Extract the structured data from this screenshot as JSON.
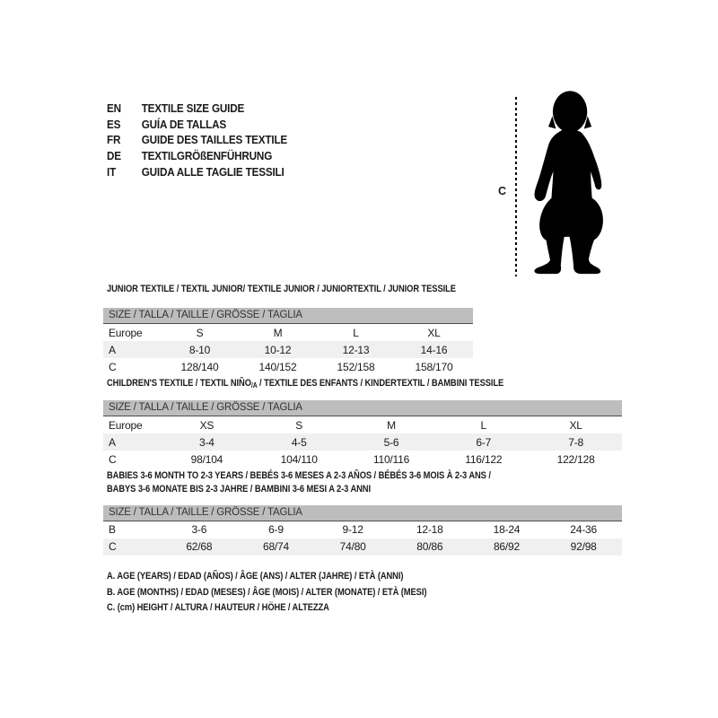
{
  "colors": {
    "background": "#ffffff",
    "size_bar_bg": "#bdbdbd",
    "size_bar_border": "#4d4d4d",
    "alt_row_bg": "#f0f0f0",
    "text": "#1a1a1a",
    "silhouette": "#000000"
  },
  "languages": {
    "items": [
      {
        "code": "EN",
        "label": "TEXTILE SIZE GUIDE"
      },
      {
        "code": "ES",
        "label": "GUÍA DE TALLAS"
      },
      {
        "code": "FR",
        "label": "GUIDE DES TAILLES TEXTILE"
      },
      {
        "code": "DE",
        "label": "TEXTILGRÖßENFÜHRUNG"
      },
      {
        "code": "IT",
        "label": "GUIDA ALLE TAGLIE TESSILI"
      }
    ]
  },
  "figure": {
    "measure_label": "C",
    "icon": "toddler-silhouette"
  },
  "sections": [
    {
      "id": "junior",
      "heading": "JUNIOR TEXTILE / TEXTIL JUNIOR/ TEXTILE JUNIOR / JUNIORTEXTIL / JUNIOR TESSILE",
      "size_label": "SIZE / TALLA / TAILLE / GRÖSSE / TAGLIA",
      "rows": [
        [
          "Europe",
          "S",
          "M",
          "L",
          "XL"
        ],
        [
          "A",
          "8-10",
          "10-12",
          "12-13",
          "14-16"
        ],
        [
          "C",
          "128/140",
          "140/152",
          "152/158",
          "158/170"
        ]
      ]
    },
    {
      "id": "children",
      "heading_pre": "CHILDREN'S TEXTILE / TEXTIL NIÑO",
      "heading_sub": "/A",
      "heading_post": " / TEXTILE DES ENFANTS / KINDERTEXTIL / BAMBINI TESSILE",
      "size_label": "SIZE / TALLA / TAILLE / GRÖSSE / TAGLIA",
      "rows": [
        [
          "Europe",
          "XS",
          "S",
          "M",
          "L",
          "XL"
        ],
        [
          "A",
          "3-4",
          "4-5",
          "5-6",
          "6-7",
          "7-8"
        ],
        [
          "C",
          "98/104",
          "104/110",
          "110/116",
          "116/122",
          "122/128"
        ]
      ]
    },
    {
      "id": "babies",
      "heading_line1": "BABIES 3-6 MONTH TO 2-3 YEARS / BEBÉS 3-6 MESES A 2-3 AÑOS / BÉBÉS 3-6 MOIS À 2-3 ANS /",
      "heading_line2": "BABYS 3-6 MONATE BIS 2-3 JAHRE / BAMBINI 3-6 MESI A 2-3 ANNI",
      "size_label": "SIZE / TALLA / TAILLE / GRÖSSE / TAGLIA",
      "rows": [
        [
          "B",
          "3-6",
          "6-9",
          "9-12",
          "12-18",
          "18-24",
          "24-36"
        ],
        [
          "C",
          "62/68",
          "68/74",
          "74/80",
          "80/86",
          "86/92",
          "92/98"
        ]
      ]
    }
  ],
  "footnotes": [
    "A. AGE (YEARS) / EDAD (AÑOS) / ÂGE (ANS) / ALTER (JAHRE) / ETÀ (ANNI)",
    "B. AGE (MONTHS) / EDAD (MESES) / ÂGE (MOIS) / ALTER (MONATE) / ETÀ (MESI)",
    "C. (cm) HEIGHT / ALTURA / HAUTEUR / HÖHE / ALTEZZA"
  ]
}
